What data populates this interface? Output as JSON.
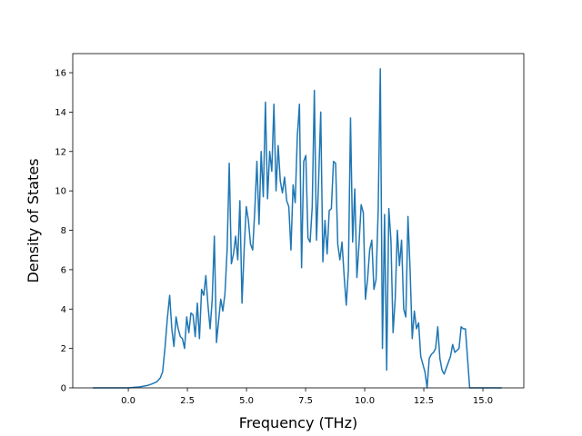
{
  "chart_data": {
    "type": "line",
    "xlabel": "Frequency (THz)",
    "ylabel": "Density of States",
    "xlim": [
      -2.35,
      16.73
    ],
    "ylim": [
      0,
      16.97
    ],
    "xticks": [
      {
        "value": 0,
        "label": "0.0"
      },
      2.5,
      {
        "value": 5,
        "label": "5.0"
      },
      7.5,
      {
        "value": 10,
        "label": "10.0"
      },
      12.5,
      {
        "value": 15,
        "label": "15.0"
      }
    ],
    "yticks": [
      0,
      2,
      4,
      6,
      8,
      10,
      12,
      14,
      16
    ],
    "series": [
      {
        "color": "#1f77b4",
        "x": [
          -1.5,
          0,
          0.5,
          0.8,
          1.0,
          1.2,
          1.35,
          1.45,
          1.55,
          1.65,
          1.75,
          1.84,
          1.93,
          2.02,
          2.11,
          2.2,
          2.29,
          2.38,
          2.47,
          2.56,
          2.65,
          2.74,
          2.83,
          2.92,
          3.01,
          3.1,
          3.19,
          3.28,
          3.37,
          3.46,
          3.55,
          3.64,
          3.73,
          3.82,
          3.91,
          4.0,
          4.09,
          4.18,
          4.27,
          4.36,
          4.45,
          4.54,
          4.63,
          4.72,
          4.81,
          4.9,
          4.99,
          5.08,
          5.17,
          5.26,
          5.35,
          5.44,
          5.53,
          5.62,
          5.71,
          5.8,
          5.89,
          5.98,
          6.07,
          6.16,
          6.25,
          6.34,
          6.43,
          6.52,
          6.61,
          6.7,
          6.79,
          6.88,
          6.97,
          7.06,
          7.15,
          7.24,
          7.33,
          7.42,
          7.51,
          7.6,
          7.69,
          7.78,
          7.87,
          7.96,
          8.05,
          8.14,
          8.23,
          8.32,
          8.41,
          8.5,
          8.59,
          8.68,
          8.77,
          8.86,
          8.95,
          9.04,
          9.13,
          9.22,
          9.31,
          9.4,
          9.49,
          9.58,
          9.67,
          9.76,
          9.85,
          9.94,
          10.03,
          10.12,
          10.21,
          10.3,
          10.39,
          10.48,
          10.57,
          10.66,
          10.75,
          10.84,
          10.93,
          11.02,
          11.11,
          11.2,
          11.29,
          11.38,
          11.47,
          11.56,
          11.65,
          11.74,
          11.83,
          11.92,
          12.01,
          12.1,
          12.19,
          12.28,
          12.37,
          12.46,
          12.55,
          12.64,
          12.73,
          12.82,
          12.91,
          13.0,
          13.09,
          13.18,
          13.27,
          13.36,
          13.45,
          13.54,
          13.63,
          13.72,
          13.81,
          13.9,
          13.99,
          14.08,
          14.17,
          14.26,
          14.35,
          14.44,
          15.8
        ],
        "values": [
          0,
          0,
          0.05,
          0.12,
          0.2,
          0.3,
          0.5,
          0.8,
          2.0,
          3.5,
          4.7,
          3.0,
          2.1,
          3.6,
          3.0,
          2.6,
          2.5,
          2.0,
          3.6,
          2.8,
          3.8,
          3.7,
          2.6,
          4.3,
          2.5,
          5.0,
          4.7,
          5.7,
          4.2,
          3.0,
          4.5,
          7.7,
          2.3,
          3.4,
          4.5,
          3.9,
          4.8,
          7.0,
          11.4,
          6.3,
          6.8,
          7.7,
          6.5,
          9.5,
          4.3,
          7.0,
          9.2,
          8.5,
          7.3,
          7.0,
          9.0,
          11.5,
          8.3,
          12.0,
          9.7,
          14.5,
          9.6,
          12.0,
          11.0,
          14.4,
          10.0,
          12.3,
          10.5,
          9.9,
          10.7,
          9.5,
          9.2,
          7.0,
          10.3,
          9.4,
          12.8,
          14.4,
          6.1,
          11.5,
          11.8,
          7.6,
          7.4,
          9.2,
          15.1,
          7.5,
          10.5,
          14.0,
          6.4,
          8.5,
          6.8,
          9.0,
          9.1,
          11.5,
          11.4,
          7.3,
          6.5,
          7.4,
          5.7,
          4.2,
          6.0,
          13.7,
          7.4,
          10.1,
          5.6,
          7.3,
          9.3,
          8.9,
          4.5,
          5.5,
          7.0,
          7.5,
          5.0,
          5.5,
          9.0,
          16.2,
          2.0,
          8.8,
          0.9,
          9.1,
          7.5,
          2.8,
          4.5,
          8.0,
          6.2,
          7.5,
          4.0,
          3.6,
          8.7,
          6.0,
          2.5,
          3.9,
          3.0,
          3.3,
          1.6,
          1.2,
          0.8,
          0,
          1.5,
          1.7,
          1.8,
          2.0,
          3.1,
          1.5,
          0.9,
          0.7,
          1.0,
          1.3,
          1.6,
          2.2,
          1.8,
          1.9,
          2.0,
          3.1,
          3.0,
          3.0,
          1.5,
          0,
          0
        ]
      }
    ]
  }
}
